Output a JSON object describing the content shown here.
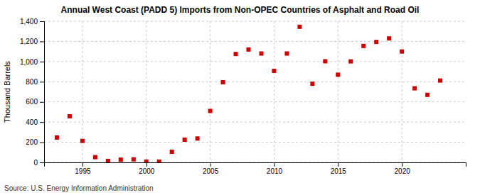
{
  "chart_data": {
    "type": "scatter",
    "title": "Annual West Coast (PADD 5) Imports from Non-OPEC Countries of Asphalt and Road Oil",
    "ylabel": "Thousand Barrels",
    "source": "Source: U.S. Energy Information Administration",
    "x": [
      1993,
      1994,
      1995,
      1996,
      1997,
      1998,
      1999,
      2000,
      2001,
      2002,
      2003,
      2004,
      2005,
      2006,
      2007,
      2008,
      2009,
      2010,
      2011,
      2012,
      2013,
      2014,
      2015,
      2016,
      2017,
      2018,
      2019,
      2020,
      2021,
      2022,
      2023
    ],
    "values": [
      247,
      457,
      213,
      52,
      15,
      27,
      30,
      8,
      8,
      105,
      225,
      237,
      510,
      795,
      1075,
      1120,
      1080,
      908,
      1080,
      1345,
      780,
      1003,
      870,
      1002,
      1155,
      1195,
      1230,
      1100,
      735,
      670,
      812
    ],
    "color": "#cc0000",
    "marker": "square",
    "grid": true,
    "xlim": [
      1992.0,
      2025.0
    ],
    "xticks": [
      1995,
      2000,
      2005,
      2010,
      2015,
      2020
    ],
    "ylim": [
      0,
      1400
    ],
    "yticks": [
      0,
      200,
      400,
      600,
      800,
      {
        "value": 1000,
        "label": "1,000"
      },
      {
        "value": 1200,
        "label": "1,200"
      },
      {
        "value": 1400,
        "label": "1,400"
      }
    ]
  }
}
